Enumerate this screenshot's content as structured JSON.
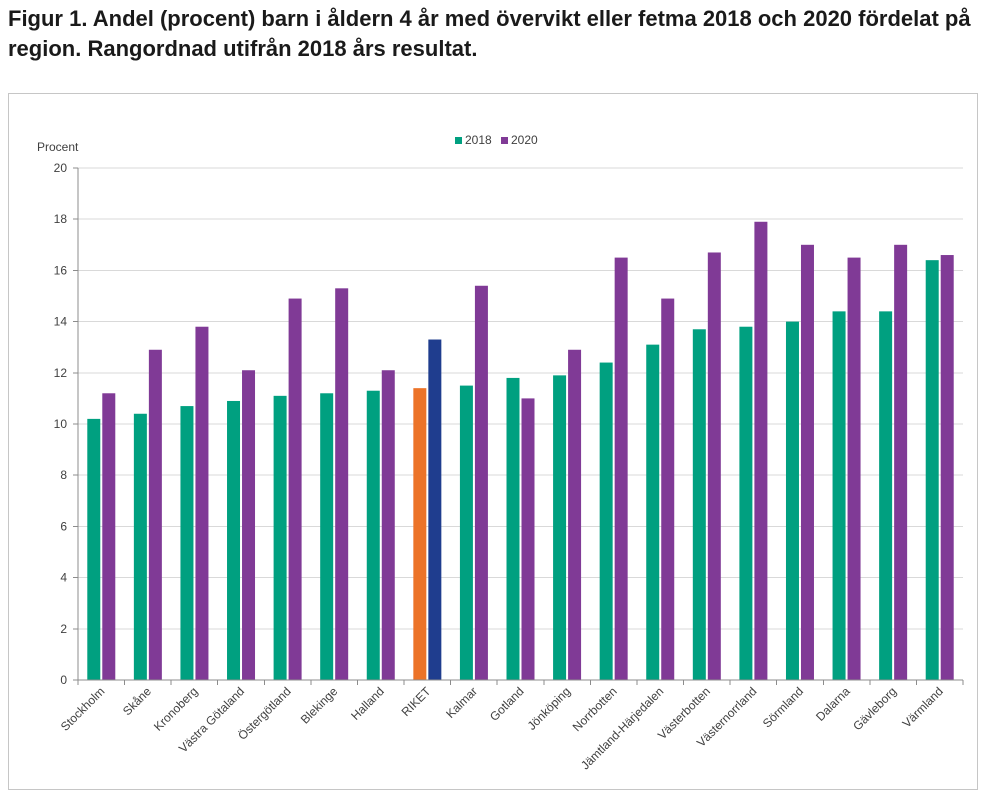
{
  "chart_data": {
    "type": "bar",
    "title": "Figur 1. Andel (procent) barn i åldern 4 år med övervikt eller fetma 2018 och 2020 fördelat på region. Rangordnad utifrån 2018 års resultat.",
    "ylabel": "Procent",
    "ylim": [
      0,
      20
    ],
    "yticks": [
      0,
      2,
      4,
      6,
      8,
      10,
      12,
      14,
      16,
      18,
      20
    ],
    "grid": true,
    "legend": "top-center",
    "categories": [
      "Stockholm",
      "Skåne",
      "Kronoberg",
      "Västra Götaland",
      "Östergötland",
      "Blekinge",
      "Halland",
      "RIKET",
      "Kalmar",
      "Gotland",
      "Jönköping",
      "Norrbotten",
      "Jämtland-Härjedalen",
      "Västerbotten",
      "Västernorrland",
      "Sörmland",
      "Dalarna",
      "Gävleborg",
      "Värmland"
    ],
    "series": [
      {
        "name": "2018",
        "color": "#00A080",
        "values": [
          10.2,
          10.4,
          10.7,
          10.9,
          11.1,
          11.2,
          11.3,
          11.4,
          11.5,
          11.8,
          11.9,
          12.4,
          13.1,
          13.7,
          13.8,
          14.0,
          14.4,
          14.4,
          16.4
        ]
      },
      {
        "name": "2020",
        "color": "#803A96",
        "values": [
          11.2,
          12.9,
          13.8,
          12.1,
          14.9,
          15.3,
          12.1,
          13.3,
          15.4,
          11.0,
          12.9,
          16.5,
          14.9,
          16.7,
          17.9,
          17.0,
          16.5,
          17.0,
          16.6
        ]
      }
    ],
    "highlight": {
      "category_index": 7,
      "colors": [
        "#EC7328",
        "#1F3D8E"
      ]
    }
  }
}
